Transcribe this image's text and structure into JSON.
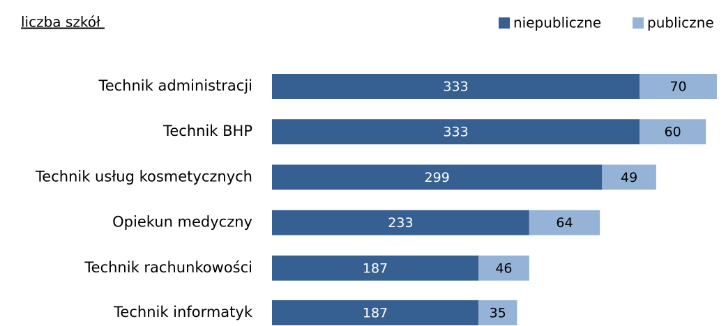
{
  "chart_data": {
    "type": "stacked-bar-horizontal",
    "title": "liczba szkół ",
    "categories": [
      "Technik administracji",
      "Technik BHP",
      "Technik usług kosmetycznych",
      "Opiekun medyczny",
      "Technik rachunkowości",
      "Technik informatyk"
    ],
    "series": [
      {
        "name": "niepubliczne",
        "color": "#376092",
        "values": [
          333,
          333,
          299,
          233,
          187,
          187
        ]
      },
      {
        "name": "publiczne",
        "color": "#95b3d7",
        "values": [
          70,
          60,
          49,
          64,
          46,
          35
        ]
      }
    ],
    "legend": "top-right"
  }
}
